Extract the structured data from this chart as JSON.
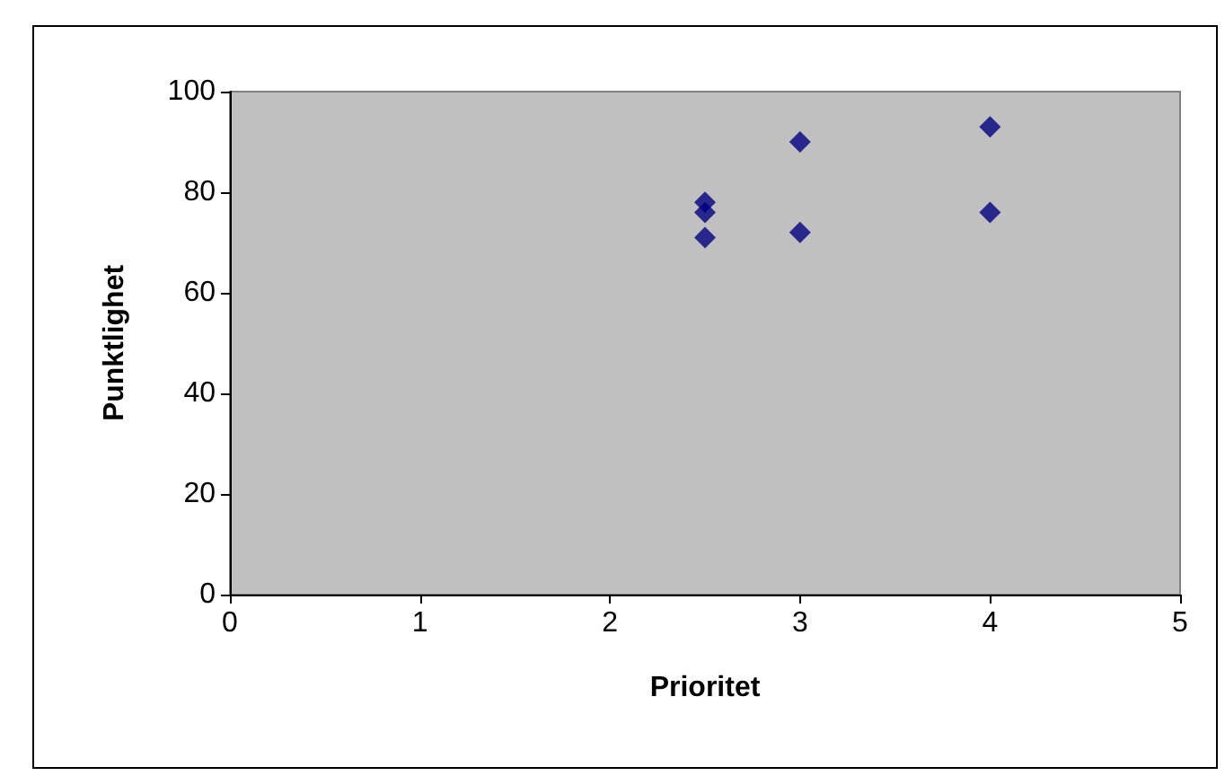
{
  "chart_data": {
    "type": "scatter",
    "xlabel": "Prioritet",
    "ylabel": "Punktlighet",
    "series": [
      {
        "color": "#000080",
        "x": [
          2.5,
          2.5,
          2.5,
          3,
          3,
          4,
          4
        ],
        "values": [
          78,
          76,
          71,
          90,
          72,
          93,
          76
        ]
      }
    ],
    "xlim": [
      0,
      5
    ],
    "xticks": [
      0,
      1,
      2,
      3,
      4,
      5
    ],
    "ylim": [
      0,
      100
    ],
    "yticks": [
      0,
      20,
      40,
      60,
      80,
      100
    ],
    "marker": "diamond"
  }
}
